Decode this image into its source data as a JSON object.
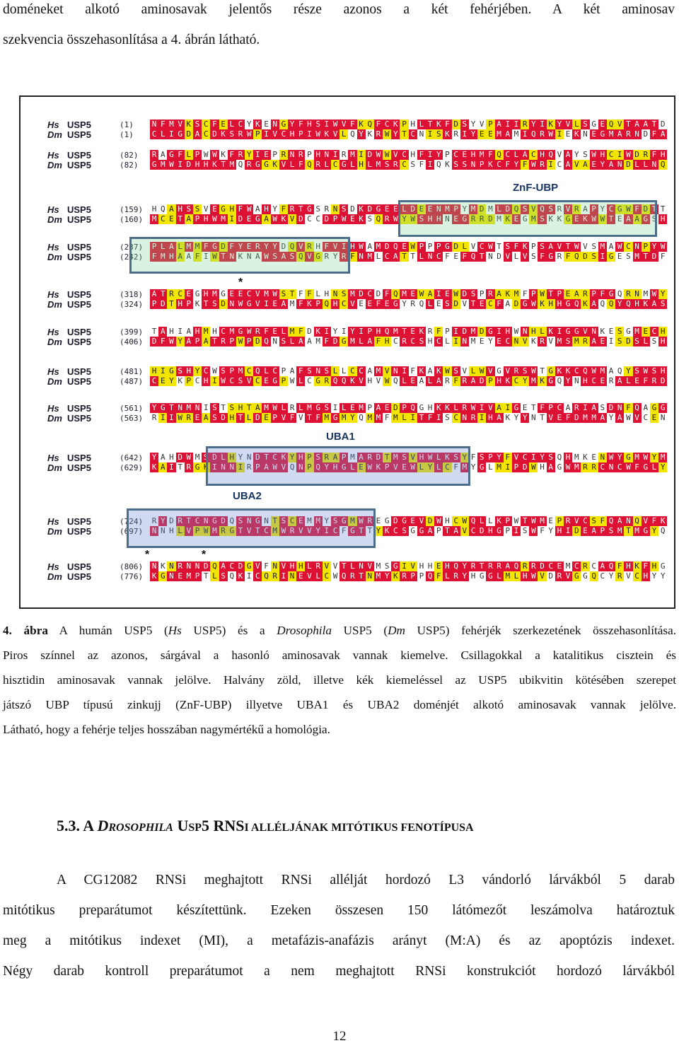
{
  "top_text": {
    "line1": "doméneket alkotó aminosavak jelentős része azonos a két fehérjében. A két aminosav",
    "line2": "szekvencia összehasonlítása a 4. ábrán látható."
  },
  "figure": {
    "blocks": [
      {
        "hs_num": "(1)",
        "dm_num": "(1)"
      },
      {
        "hs_num": "(82)",
        "dm_num": "(82)"
      },
      {
        "hs_num": "(159)",
        "dm_num": "(160)"
      },
      {
        "hs_num": "(237)",
        "dm_num": "(242)"
      },
      {
        "hs_num": "(318)",
        "dm_num": "(324)"
      },
      {
        "hs_num": "(399)",
        "dm_num": "(406)"
      },
      {
        "hs_num": "(481)",
        "dm_num": "(487)"
      },
      {
        "hs_num": "(561)",
        "dm_num": "(563)"
      },
      {
        "hs_num": "(642)",
        "dm_num": "(629)"
      },
      {
        "hs_num": "(724)",
        "dm_num": "(697)"
      },
      {
        "hs_num": "(806)",
        "dm_num": "(776)"
      }
    ],
    "species": {
      "hs": "Hs",
      "dm": "Dm",
      "gene": "USP5"
    },
    "domains": {
      "znf": "ZnF-UBP",
      "uba1": "UBA1",
      "uba2": "UBA2"
    },
    "star": "*"
  },
  "caption": {
    "fig_label": "4. ábra",
    "line1_a": " A humán USP5 (",
    "hs": "Hs",
    "line1_b": " USP5) és a ",
    "dros": "Drosophila",
    "line1_c": " USP5 (",
    "dm": "Dm",
    "line1_d": " USP5) fehérjék szerkezetének összehasonlítása.",
    "line2": "Piros színnel az azonos, sárgával a hasonló aminosavak vannak kiemelve. Csillagokkal a katalitikus cisztein és",
    "line3": "hisztidin aminosavak vannak jelölve. Halvány zöld, illetve kék kiemeléssel az USP5 ubikvitin kötésében szerepet",
    "line4": "játszó UBP típusú zinkujj (ZnF-UBP) illyetve UBA1 és UBA2 doménjét alkotó aminosavak vannak jelölve.",
    "line5": "Látható, hogy a fehérje teljes hosszában nagymértékű a homológia."
  },
  "heading": {
    "num": "5.3. ",
    "a": "A ",
    "d1": "D",
    "d2": "ROSOPHILA",
    "u1": " U",
    "u2": "SP",
    "five": "5 RNS",
    "i": "I",
    "rest": " ALLÉLJÁNAK MITÓTIKUS FENOTÍPUSA"
  },
  "body": {
    "line1": "A CG12082 RNSi meghajtott RNSi allélját hordozó L3 vándorló lárvákból 5 darab",
    "line2": "mitótikus preparátumot készítettünk. Ezeken összesen 150 látómezőt leszámolva határoztuk",
    "line3": "meg a mitótikus indexet (MI), a metafázis-anafázis arányt (M:A) és az apoptózis indexet.",
    "line4": "Négy darab kontroll preparátumot a nem meghajtott RNSi konstrukciót hordozó lárvákból"
  },
  "page_number": "12"
}
